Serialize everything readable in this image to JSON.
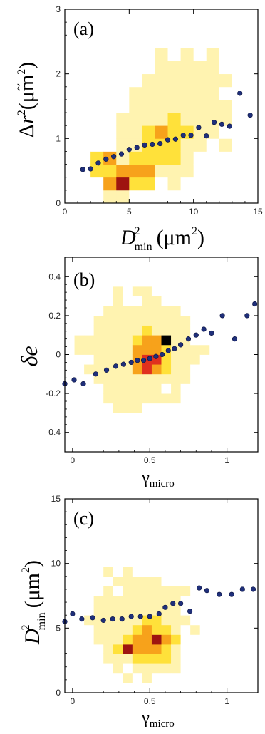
{
  "figure": {
    "panels": [
      {
        "label": "(a)",
        "ylabel_main": "Δ",
        "ylabel_var": "r",
        "ylabel_tilde": "~",
        "ylabel_exp": "2",
        "ylabel_unit": "(μm",
        "ylabel_unit_exp": "2",
        "ylabel_close": ")",
        "xlabel_var": "D",
        "xlabel_exp": "2",
        "xlabel_sub": "min",
        "xlabel_unit": "(μm",
        "xlabel_unit_exp": "2",
        "xlabel_close": ")"
      },
      {
        "label": "(b)",
        "ylabel": "δe",
        "xlabel_var": "γ",
        "xlabel_sub": "micro"
      },
      {
        "label": "(c)",
        "ylabel_var": "D",
        "ylabel_exp": "2",
        "ylabel_sub": "min",
        "ylabel_unit": "(μm",
        "ylabel_unit_exp": "2",
        "ylabel_close": ")",
        "xlabel_var": "γ",
        "xlabel_sub": "micro"
      }
    ]
  },
  "chart_data": [
    {
      "type": "heatmap",
      "title": "",
      "panel_label": "(a)",
      "xlabel": "D²min (μm²)",
      "ylabel": "Δr̃² (μm²)",
      "xlim": [
        0,
        15
      ],
      "ylim": [
        0,
        3
      ],
      "xticks": [
        0,
        5,
        10,
        15
      ],
      "yticks": [
        0,
        1,
        2,
        3
      ],
      "xtick_labels": [
        "0",
        "5",
        "10",
        "15"
      ],
      "ytick_labels": [
        "0",
        "1",
        "2",
        "3"
      ],
      "grid": false,
      "colormap": [
        "#ffffff",
        "#fff3b0",
        "#ffe13a",
        "#f7a21b",
        "#e0301e",
        "#9e1410",
        "#000000"
      ],
      "hotspots": [
        {
          "x": 4.3,
          "y": 0.35,
          "w": 1.0,
          "peak": 1.0
        },
        {
          "x": 3.0,
          "y": 0.6,
          "w": 0.85,
          "peak": 0.85
        },
        {
          "x": 6.0,
          "y": 0.5,
          "w": 1.3,
          "peak": 0.7
        },
        {
          "x": 7.5,
          "y": 1.0,
          "w": 2.8,
          "peak": 0.45
        },
        {
          "x": 9.5,
          "y": 1.6,
          "w": 4.5,
          "peak": 0.18
        }
      ],
      "series": [
        {
          "marker": "circle",
          "color": "#1f2f7a",
          "x": [
            1.4,
            2.0,
            2.6,
            3.2,
            3.8,
            4.4,
            5.0,
            5.6,
            6.2,
            6.8,
            7.4,
            8.0,
            8.6,
            9.2,
            9.8,
            10.4,
            11.0,
            11.6,
            12.2,
            12.8,
            13.6,
            14.4
          ],
          "y": [
            0.52,
            0.53,
            0.62,
            0.68,
            0.72,
            0.76,
            0.83,
            0.86,
            0.9,
            0.91,
            0.92,
            0.98,
            0.99,
            1.05,
            1.05,
            1.17,
            1.04,
            1.25,
            1.22,
            1.19,
            1.7,
            1.36
          ]
        }
      ]
    },
    {
      "type": "heatmap",
      "title": "",
      "panel_label": "(b)",
      "xlabel": "γmicro",
      "ylabel": "δe",
      "xlim": [
        -0.05,
        1.2
      ],
      "ylim": [
        -0.5,
        0.5
      ],
      "xticks": [
        0,
        0.5,
        1
      ],
      "yticks": [
        -0.4,
        -0.2,
        0,
        0.2,
        0.4
      ],
      "xtick_labels": [
        "0",
        "0.5",
        "1"
      ],
      "ytick_labels": [
        "-0.4",
        "-0.2",
        "0",
        "0.2",
        "0.4"
      ],
      "grid": false,
      "colormap": [
        "#ffffff",
        "#fff3b0",
        "#ffe13a",
        "#f7a21b",
        "#e0301e",
        "#9e1410",
        "#000000"
      ],
      "hotspots": [
        {
          "x": 0.6,
          "y": 0.08,
          "w": 0.05,
          "peak": 1.0
        },
        {
          "x": 0.45,
          "y": -0.07,
          "w": 0.05,
          "peak": 1.0
        },
        {
          "x": 0.5,
          "y": 0.0,
          "w": 0.16,
          "peak": 0.75
        },
        {
          "x": 0.45,
          "y": 0.02,
          "w": 0.35,
          "peak": 0.25
        }
      ],
      "series": [
        {
          "marker": "circle",
          "color": "#1f2f7a",
          "x": [
            -0.05,
            0.01,
            0.07,
            0.15,
            0.22,
            0.28,
            0.33,
            0.38,
            0.42,
            0.46,
            0.5,
            0.54,
            0.58,
            0.62,
            0.66,
            0.7,
            0.75,
            0.8,
            0.85,
            0.9,
            0.97,
            1.05,
            1.13,
            1.18
          ],
          "y": [
            -0.15,
            -0.13,
            -0.15,
            -0.1,
            -0.08,
            -0.06,
            -0.05,
            -0.04,
            -0.03,
            -0.03,
            -0.02,
            -0.01,
            0.0,
            0.02,
            0.03,
            0.05,
            0.08,
            0.1,
            0.13,
            0.11,
            0.2,
            0.08,
            0.2,
            0.26
          ]
        }
      ]
    },
    {
      "type": "heatmap",
      "title": "",
      "panel_label": "(c)",
      "xlabel": "γmicro",
      "ylabel": "D²min (μm²)",
      "xlim": [
        -0.05,
        1.2
      ],
      "ylim": [
        0,
        15
      ],
      "xticks": [
        0,
        0.5,
        1
      ],
      "yticks": [
        0,
        5,
        10,
        15
      ],
      "xtick_labels": [
        "0",
        "0.5",
        "1"
      ],
      "ytick_labels": [
        "0",
        "5",
        "10",
        "15"
      ],
      "grid": false,
      "colormap": [
        "#ffffff",
        "#fff3b0",
        "#ffe13a",
        "#f7a21b",
        "#e0301e",
        "#9e1410",
        "#000000"
      ],
      "hotspots": [
        {
          "x": 0.55,
          "y": 4.2,
          "w": 0.04,
          "peak": 1.0
        },
        {
          "x": 0.35,
          "y": 3.5,
          "w": 0.07,
          "peak": 0.8
        },
        {
          "x": 0.5,
          "y": 4.0,
          "w": 0.16,
          "peak": 0.72
        },
        {
          "x": 0.45,
          "y": 5.5,
          "w": 0.35,
          "peak": 0.22
        }
      ],
      "series": [
        {
          "marker": "circle",
          "color": "#1f2f7a",
          "x": [
            -0.05,
            0.0,
            0.06,
            0.13,
            0.2,
            0.26,
            0.32,
            0.38,
            0.44,
            0.5,
            0.56,
            0.6,
            0.65,
            0.7,
            0.76,
            0.82,
            0.87,
            0.95,
            1.03,
            1.1,
            1.17
          ],
          "y": [
            5.5,
            6.1,
            5.7,
            5.8,
            5.6,
            5.7,
            5.7,
            5.9,
            5.9,
            5.9,
            6.1,
            6.6,
            6.9,
            6.9,
            6.3,
            8.1,
            7.9,
            7.6,
            7.6,
            8.0,
            8.0
          ]
        }
      ]
    }
  ]
}
